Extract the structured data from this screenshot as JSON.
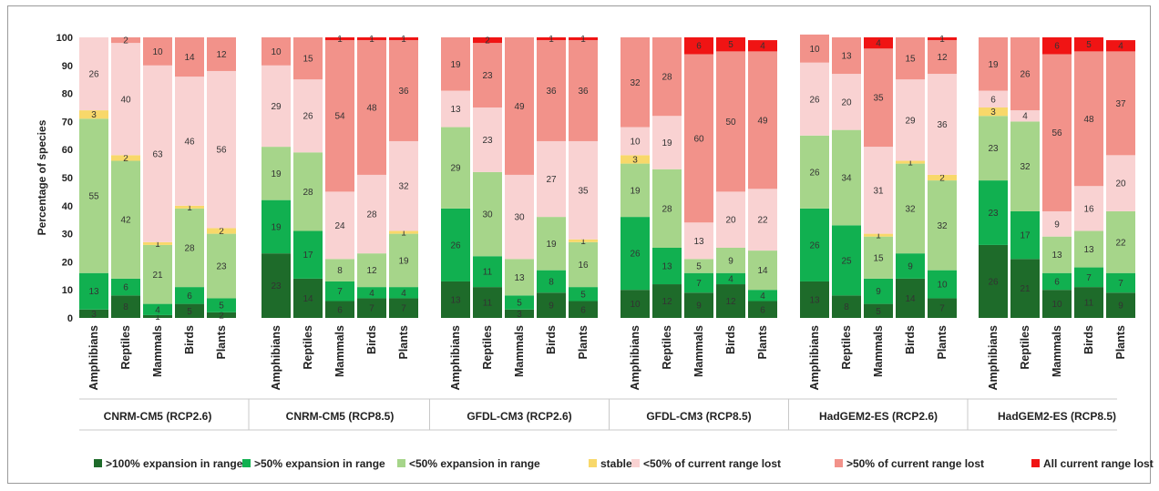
{
  "chart_data": {
    "type": "bar",
    "stacked": true,
    "ylabel": "Percentage of species",
    "ylim": [
      0,
      100
    ],
    "yticks": [
      0,
      10,
      20,
      30,
      40,
      50,
      60,
      70,
      80,
      90,
      100
    ],
    "grid": false,
    "legend_position": "bottom",
    "categories": [
      "Amphibians",
      "Reptiles",
      "Mammals",
      "Birds",
      "Plants"
    ],
    "series": [
      {
        "name": ">100% expansion in range",
        "color": "#1e6b2a"
      },
      {
        "name": ">50% expansion in range",
        "color": "#11b050"
      },
      {
        "name": "<50% expansion in range",
        "color": "#a6d58a"
      },
      {
        "name": "stable",
        "color": "#f8d86a"
      },
      {
        "name": "<50% of current range lost",
        "color": "#f9d2d2"
      },
      {
        "name": ">50% of current range lost",
        "color": "#f2928a"
      },
      {
        "name": "All current range lost",
        "color": "#f01414"
      }
    ],
    "groups": [
      {
        "name": "CNRM-CM5 (RCP2.6)",
        "stacks": [
          [
            3,
            13,
            55,
            3,
            26,
            0,
            0
          ],
          [
            8,
            6,
            42,
            2,
            40,
            2,
            0
          ],
          [
            1,
            4,
            21,
            1,
            63,
            10,
            0
          ],
          [
            5,
            6,
            28,
            1,
            46,
            14,
            0
          ],
          [
            2,
            5,
            23,
            2,
            56,
            12,
            0
          ]
        ]
      },
      {
        "name": "CNRM-CM5 (RCP8.5)",
        "stacks": [
          [
            23,
            19,
            19,
            0,
            29,
            10,
            0
          ],
          [
            14,
            17,
            28,
            0,
            26,
            15,
            0
          ],
          [
            6,
            7,
            8,
            0,
            24,
            54,
            1
          ],
          [
            7,
            4,
            12,
            0,
            28,
            48,
            1
          ],
          [
            7,
            4,
            19,
            1,
            32,
            36,
            1
          ]
        ]
      },
      {
        "name": "GFDL-CM3 (RCP2.6)",
        "stacks": [
          [
            13,
            26,
            29,
            0,
            13,
            19,
            0
          ],
          [
            11,
            11,
            30,
            0,
            23,
            23,
            2
          ],
          [
            3,
            5,
            13,
            0,
            30,
            49,
            0
          ],
          [
            9,
            8,
            19,
            0,
            27,
            36,
            1
          ],
          [
            6,
            5,
            16,
            1,
            35,
            36,
            1
          ]
        ]
      },
      {
        "name": "GFDL-CM3 (RCP8.5)",
        "stacks": [
          [
            10,
            26,
            19,
            3,
            10,
            32,
            0
          ],
          [
            12,
            13,
            28,
            0,
            19,
            28,
            0
          ],
          [
            9,
            7,
            5,
            0,
            13,
            60,
            6
          ],
          [
            12,
            4,
            9,
            0,
            20,
            50,
            5
          ],
          [
            6,
            4,
            14,
            0,
            22,
            49,
            4
          ]
        ]
      },
      {
        "name": "HadGEM2-ES (RCP2.6)",
        "stacks": [
          [
            13,
            26,
            26,
            0,
            26,
            10,
            0
          ],
          [
            8,
            25,
            34,
            0,
            20,
            13,
            0
          ],
          [
            5,
            9,
            15,
            1,
            31,
            35,
            4
          ],
          [
            14,
            9,
            32,
            1,
            29,
            15,
            0
          ],
          [
            7,
            10,
            32,
            2,
            36,
            12,
            1
          ]
        ]
      },
      {
        "name": "HadGEM2-ES (RCP8.5)",
        "stacks": [
          [
            26,
            23,
            23,
            3,
            6,
            19,
            0
          ],
          [
            21,
            17,
            32,
            0,
            4,
            26,
            0
          ],
          [
            10,
            6,
            13,
            0,
            9,
            56,
            6
          ],
          [
            11,
            7,
            13,
            0,
            16,
            48,
            5
          ],
          [
            9,
            7,
            22,
            0,
            20,
            37,
            4
          ]
        ]
      }
    ]
  }
}
